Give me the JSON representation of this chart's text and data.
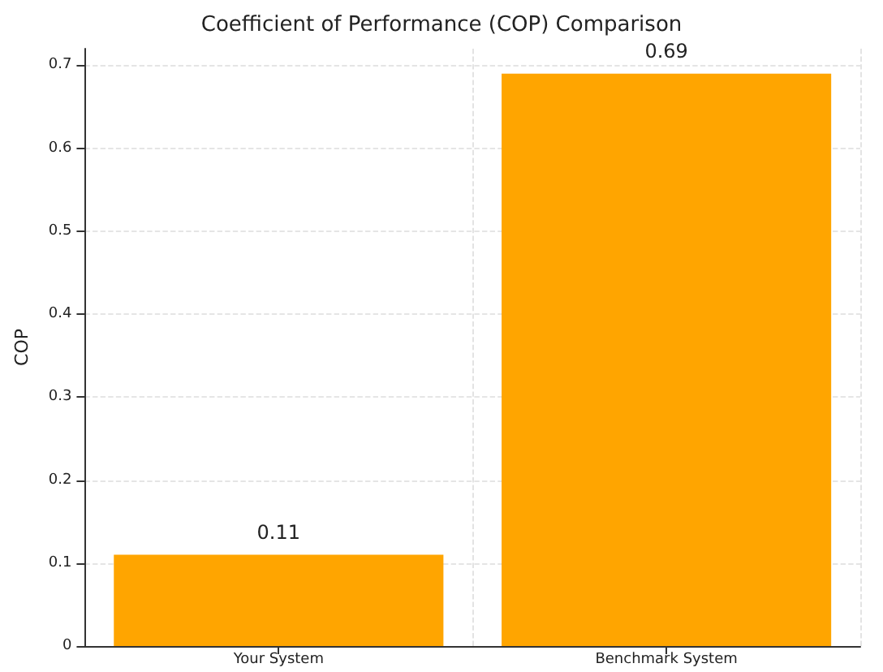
{
  "chart_data": {
    "type": "bar",
    "title": "Coefficient of Performance (COP) Comparison",
    "ylabel": "COP",
    "categories": [
      "Your System",
      "Benchmark System"
    ],
    "values": [
      0.11,
      0.69
    ],
    "color": "#ffa500",
    "ylim": [
      0,
      0.72
    ],
    "yticks": [
      0,
      0.1,
      0.2,
      0.3,
      0.4,
      0.5,
      0.6,
      0.7
    ],
    "grid": true,
    "data_labels": true
  }
}
